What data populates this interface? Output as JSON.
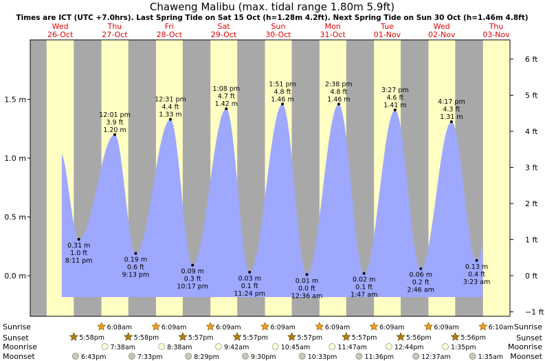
{
  "header": {
    "title": "Chaweng Malibu (max. tidal range 1.80m 5.9ft)",
    "subtitle": "Times are ICT (UTC +7.0hrs). Last Spring Tide on Sat 15 Oct (h=1.28m 4.2ft). Next Spring Tide on Sun 30 Oct (h=1.46m 4.8ft)"
  },
  "colors": {
    "day": "#ffffc4",
    "night": "#a8a8a8",
    "tide": "#9ea8ff",
    "day_label": "#e00000"
  },
  "chart_data": {
    "type": "area",
    "title": "Chaweng Malibu (max. tidal range 1.80m 5.9ft)",
    "x_unit": "day offset from Wed 26-Oct 00:00 (ICT)",
    "xlim": [
      -0.05,
      8.05
    ],
    "ylim": [
      -0.25,
      1.81
    ],
    "y_left_ticks": [
      {
        "v": 0.0,
        "label": "0.0 m"
      },
      {
        "v": 0.5,
        "label": "0.5 m"
      },
      {
        "v": 1.0,
        "label": "1.0 m"
      },
      {
        "v": 1.5,
        "label": "1.5 m"
      }
    ],
    "y_right_ticks": [
      {
        "v": -1,
        "label": "−1 ft"
      },
      {
        "v": 0,
        "label": "0 ft"
      },
      {
        "v": 1,
        "label": "1 ft"
      },
      {
        "v": 2,
        "label": "2 ft"
      },
      {
        "v": 3,
        "label": "3 ft"
      },
      {
        "v": 4,
        "label": "4 ft"
      },
      {
        "v": 5,
        "label": "5 ft"
      },
      {
        "v": 6,
        "label": "6 ft"
      }
    ],
    "days": [
      {
        "name": "Wed",
        "date": "26-Oct"
      },
      {
        "name": "Thu",
        "date": "27-Oct"
      },
      {
        "name": "Fri",
        "date": "28-Oct"
      },
      {
        "name": "Sat",
        "date": "29-Oct"
      },
      {
        "name": "Sun",
        "date": "30-Oct"
      },
      {
        "name": "Mon",
        "date": "31-Oct"
      },
      {
        "name": "Tue",
        "date": "01-Nov"
      },
      {
        "name": "Wed",
        "date": "02-Nov"
      },
      {
        "name": "Thu",
        "date": "03-Nov"
      }
    ],
    "tides": [
      {
        "t": 0.5,
        "h": 1.05,
        "labeled": false
      },
      {
        "t": 0.841,
        "h": 0.31,
        "type": "low",
        "m": "0.31 m",
        "ft": "1.0 ft",
        "time": "8:11 pm",
        "labeled": true
      },
      {
        "t": 1.5007,
        "h": 1.2,
        "type": "high",
        "m": "1.20 m",
        "ft": "3.9 ft",
        "time": "12:01 pm",
        "labeled": true
      },
      {
        "t": 1.884,
        "h": 0.19,
        "type": "low",
        "m": "0.19 m",
        "ft": "0.6 ft",
        "time": "9:13 pm",
        "labeled": true
      },
      {
        "t": 2.5215,
        "h": 1.33,
        "type": "high",
        "m": "1.33 m",
        "ft": "4.4 ft",
        "time": "12:31 pm",
        "labeled": true
      },
      {
        "t": 2.9285,
        "h": 0.09,
        "type": "low",
        "m": "0.09 m",
        "ft": "0.3 ft",
        "time": "10:17 pm",
        "labeled": true
      },
      {
        "t": 3.5472,
        "h": 1.42,
        "type": "high",
        "m": "1.42 m",
        "ft": "4.7 ft",
        "time": "1:08 pm",
        "labeled": true
      },
      {
        "t": 3.975,
        "h": 0.03,
        "type": "low",
        "m": "0.03 m",
        "ft": "0.1 ft",
        "time": "11:24 pm",
        "labeled": true
      },
      {
        "t": 4.5771,
        "h": 1.46,
        "type": "high",
        "m": "1.46 m",
        "ft": "4.8 ft",
        "time": "1:51 pm",
        "labeled": true
      },
      {
        "t": 5.025,
        "h": 0.01,
        "type": "low",
        "m": "0.01 m",
        "ft": "0.0 ft",
        "time": "12:36 am",
        "labeled": true
      },
      {
        "t": 5.6097,
        "h": 1.46,
        "type": "high",
        "m": "1.46 m",
        "ft": "4.8 ft",
        "time": "2:38 pm",
        "labeled": true
      },
      {
        "t": 6.0743,
        "h": 0.02,
        "type": "low",
        "m": "0.02 m",
        "ft": "0.1 ft",
        "time": "1:47 am",
        "labeled": true
      },
      {
        "t": 6.6438,
        "h": 1.41,
        "type": "high",
        "m": "1.41 m",
        "ft": "4.6 ft",
        "time": "3:27 pm",
        "labeled": true
      },
      {
        "t": 7.1153,
        "h": 0.06,
        "type": "low",
        "m": "0.06 m",
        "ft": "0.2 ft",
        "time": "2:46 am",
        "labeled": true
      },
      {
        "t": 7.6785,
        "h": 1.31,
        "type": "high",
        "m": "1.31 m",
        "ft": "4.3 ft",
        "time": "4:17 pm",
        "labeled": true
      },
      {
        "t": 8.141,
        "h": 0.13,
        "type": "low",
        "m": "0.13 m",
        "ft": "0.4 ft",
        "time": "3:23 am",
        "labeled": true
      }
    ],
    "sun": [
      {
        "rise": 0.25,
        "set": 0.7486,
        "rise_label": "",
        "set_label": "5:58pm"
      },
      {
        "rise": 1.2556,
        "set": 1.7486,
        "rise_label": "6:08am",
        "set_label": "5:58pm"
      },
      {
        "rise": 2.2563,
        "set": 2.7479,
        "rise_label": "6:09am",
        "set_label": "5:57pm"
      },
      {
        "rise": 3.2563,
        "set": 3.7479,
        "rise_label": "6:09am",
        "set_label": "5:57pm"
      },
      {
        "rise": 4.2563,
        "set": 4.7479,
        "rise_label": "6:09am",
        "set_label": "5:57pm"
      },
      {
        "rise": 5.2563,
        "set": 5.7479,
        "rise_label": "6:09am",
        "set_label": "5:57pm"
      },
      {
        "rise": 6.2563,
        "set": 6.7472,
        "rise_label": "6:09am",
        "set_label": "5:56pm"
      },
      {
        "rise": 7.2563,
        "set": 7.7472,
        "rise_label": "6:09am",
        "set_label": "5:56pm"
      },
      {
        "rise": 8.2569,
        "set": null,
        "rise_label": "6:10am",
        "set_label": ""
      }
    ],
    "moonrise": [
      {
        "t": 1.3181,
        "label": "7:38am"
      },
      {
        "t": 2.3597,
        "label": "8:38am"
      },
      {
        "t": 3.4042,
        "label": "9:42am"
      },
      {
        "t": 4.4479,
        "label": "10:45am"
      },
      {
        "t": 5.491,
        "label": "11:47am"
      },
      {
        "t": 6.5306,
        "label": "12:44pm"
      },
      {
        "t": 7.566,
        "label": "1:35pm"
      }
    ],
    "moonset": [
      {
        "t": 0.7799,
        "label": "6:43pm"
      },
      {
        "t": 1.8146,
        "label": "7:33pm"
      },
      {
        "t": 2.8535,
        "label": "8:29pm"
      },
      {
        "t": 3.8958,
        "label": "9:30pm"
      },
      {
        "t": 4.9396,
        "label": "10:33pm"
      },
      {
        "t": 5.9833,
        "label": "11:36pm"
      },
      {
        "t": 7.0257,
        "label": "12:37am"
      },
      {
        "t": 8.066,
        "label": "1:35am"
      }
    ]
  },
  "rows": {
    "sunrise": "Sunrise",
    "sunset": "Sunset",
    "moonrise": "Moonrise",
    "moonset": "Moonset"
  }
}
